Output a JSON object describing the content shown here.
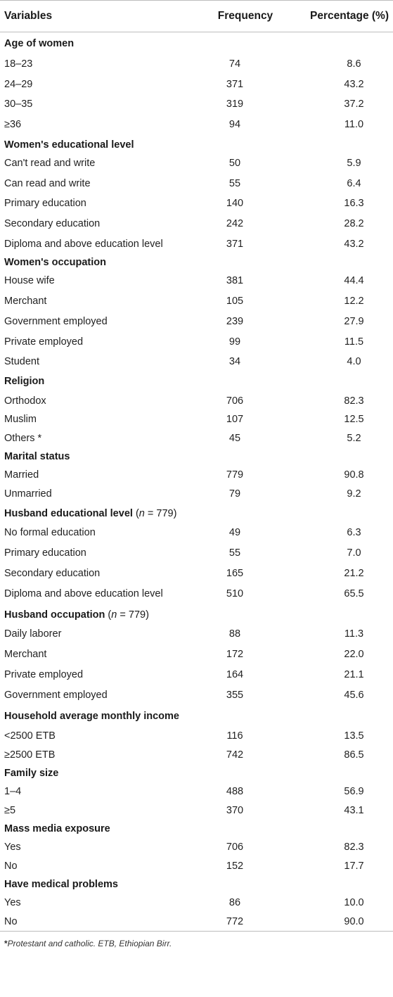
{
  "table": {
    "headers": {
      "variables": "Variables",
      "frequency": "Frequency",
      "percentage": "Percentage (%)"
    },
    "sections": [
      {
        "title": "Age of women",
        "condition": "",
        "rows": [
          {
            "label": "18–23",
            "frequency": "74",
            "percentage": "8.6"
          },
          {
            "label": "24–29",
            "frequency": "371",
            "percentage": "43.2"
          },
          {
            "label": "30–35",
            "frequency": "319",
            "percentage": "37.2"
          },
          {
            "label": "≥36",
            "frequency": "94",
            "percentage": "11.0"
          }
        ]
      },
      {
        "title": "Women's educational level",
        "condition": "",
        "rows": [
          {
            "label": "Can't read and write",
            "frequency": "50",
            "percentage": "5.9"
          },
          {
            "label": "Can read and write",
            "frequency": "55",
            "percentage": "6.4"
          },
          {
            "label": "Primary education",
            "frequency": "140",
            "percentage": "16.3"
          },
          {
            "label": "Secondary education",
            "frequency": "242",
            "percentage": "28.2"
          },
          {
            "label": "Diploma and above education level",
            "frequency": "371",
            "percentage": "43.2"
          }
        ]
      },
      {
        "title": "Women's occupation",
        "condition": "",
        "rows": [
          {
            "label": "House wife",
            "frequency": "381",
            "percentage": "44.4"
          },
          {
            "label": "Merchant",
            "frequency": "105",
            "percentage": "12.2"
          },
          {
            "label": "Government employed",
            "frequency": "239",
            "percentage": "27.9"
          },
          {
            "label": "Private employed",
            "frequency": "99",
            "percentage": "11.5"
          },
          {
            "label": "Student",
            "frequency": "34",
            "percentage": "4.0"
          }
        ]
      },
      {
        "title": "Religion",
        "condition": "",
        "rows": [
          {
            "label": "Orthodox",
            "frequency": "706",
            "percentage": "82.3"
          },
          {
            "label": "Muslim",
            "frequency": "107",
            "percentage": "12.5"
          },
          {
            "label": "Others *",
            "frequency": "45",
            "percentage": "5.2"
          }
        ]
      },
      {
        "title": "Marital status",
        "condition": "",
        "rows": [
          {
            "label": "Married",
            "frequency": "779",
            "percentage": "90.8"
          },
          {
            "label": "Unmarried",
            "frequency": "79",
            "percentage": "9.2"
          }
        ]
      },
      {
        "title": "Husband educational level",
        "condition": "779",
        "rows": [
          {
            "label": "No formal education",
            "frequency": "49",
            "percentage": "6.3"
          },
          {
            "label": "Primary education",
            "frequency": "55",
            "percentage": "7.0"
          },
          {
            "label": "Secondary education",
            "frequency": "165",
            "percentage": "21.2"
          },
          {
            "label": "Diploma and above education level",
            "frequency": "510",
            "percentage": "65.5"
          }
        ]
      },
      {
        "title": "Husband occupation",
        "condition": "779",
        "rows": [
          {
            "label": "Daily laborer",
            "frequency": "88",
            "percentage": "11.3"
          },
          {
            "label": "Merchant",
            "frequency": "172",
            "percentage": "22.0"
          },
          {
            "label": "Private employed",
            "frequency": "164",
            "percentage": "21.1"
          },
          {
            "label": "Government employed",
            "frequency": "355",
            "percentage": "45.6"
          }
        ]
      },
      {
        "title": "Household average monthly income",
        "condition": "",
        "rows": [
          {
            "label": "<2500 ETB",
            "frequency": "116",
            "percentage": "13.5"
          },
          {
            "label": "≥2500 ETB",
            "frequency": "742",
            "percentage": "86.5"
          }
        ]
      },
      {
        "title": "Family size",
        "condition": "",
        "rows": [
          {
            "label": "1–4",
            "frequency": "488",
            "percentage": "56.9"
          },
          {
            "label": "≥5",
            "frequency": "370",
            "percentage": "43.1"
          }
        ]
      },
      {
        "title": "Mass media exposure",
        "condition": "",
        "rows": [
          {
            "label": "Yes",
            "frequency": "706",
            "percentage": "82.3"
          },
          {
            "label": "No",
            "frequency": "152",
            "percentage": "17.7"
          }
        ]
      },
      {
        "title": "Have medical problems",
        "condition": "",
        "rows": [
          {
            "label": "Yes",
            "frequency": "86",
            "percentage": "10.0"
          },
          {
            "label": "No",
            "frequency": "772",
            "percentage": "90.0"
          }
        ]
      }
    ],
    "footnote": {
      "mark": "*",
      "text": "Protestant and catholic. ETB, Ethiopian Birr."
    }
  }
}
